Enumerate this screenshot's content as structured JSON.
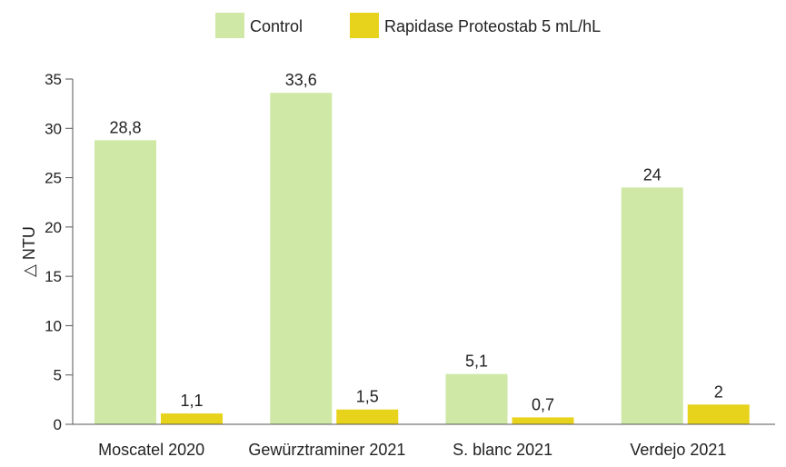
{
  "chart_data": {
    "type": "bar",
    "title": "",
    "xlabel": "",
    "ylabel": "△ NTU",
    "ylim": [
      0,
      35
    ],
    "yticks": [
      0,
      5,
      10,
      15,
      20,
      25,
      30,
      35
    ],
    "grid": false,
    "legend_position": "top-center",
    "categories": [
      "Moscatel 2020",
      "Gewürztraminer 2021",
      "S. blanc 2021",
      "Verdejo 2021"
    ],
    "series": [
      {
        "name": "Control",
        "color": "#cfe8a6",
        "values": [
          28.8,
          33.6,
          5.1,
          24
        ],
        "labels": [
          "28,8",
          "33,6",
          "5,1",
          "24"
        ]
      },
      {
        "name": "Rapidase Proteostab 5 mL/hL",
        "color": "#e8d31c",
        "values": [
          1.1,
          1.5,
          0.7,
          2
        ],
        "labels": [
          "1,1",
          "1,5",
          "0,7",
          "2"
        ]
      }
    ]
  }
}
